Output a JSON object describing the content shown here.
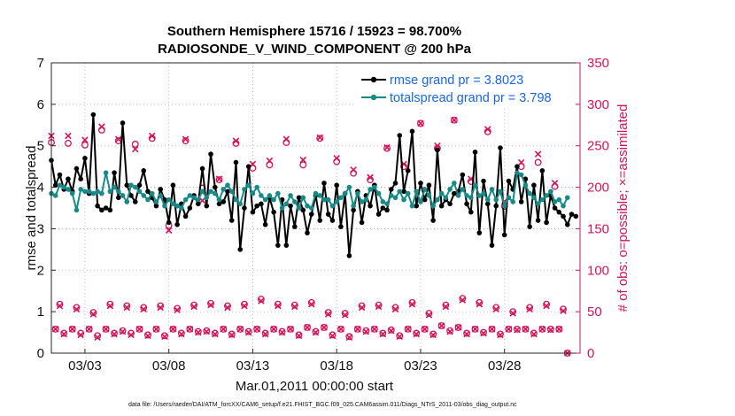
{
  "chart_data": {
    "type": "line",
    "title": "Southern Hemisphere 15716 / 15923 = 98.700%",
    "subtitle": "RADIOSONDE_V_WIND_COMPONENT @ 200 hPa",
    "ylabel": "rmse and totalspread",
    "y2label": "# of obs: o=possible; ×=assimilated",
    "xlabel": "Mar.01,2011 00:00:00 start",
    "footnote": "data file: /Users/raeder/DAI/ATM_forcXX/CAM6_setup/f.e21.FHIST_BGC.f09_025.CAM6assim.011/Diags_NTrS_2011-03/obs_diag_output.nc",
    "ylim": [
      0,
      7
    ],
    "y2lim": [
      0,
      350
    ],
    "xlim": [
      1,
      32.5
    ],
    "yticks": [
      "0",
      "1",
      "2",
      "3",
      "4",
      "5",
      "6",
      "7"
    ],
    "y2ticks": [
      "0",
      "50",
      "100",
      "150",
      "200",
      "250",
      "300",
      "350"
    ],
    "xticks": [
      {
        "pos": 3,
        "label": "03/03"
      },
      {
        "pos": 8,
        "label": "03/08"
      },
      {
        "pos": 13,
        "label": "03/13"
      },
      {
        "pos": 18,
        "label": "03/18"
      },
      {
        "pos": 23,
        "label": "03/23"
      },
      {
        "pos": 28,
        "label": "03/28"
      }
    ],
    "legend_position": "top-right",
    "series": [
      {
        "name": "rmse grand pr = 3.8023",
        "color": "#000000",
        "axis": "left",
        "values": [
          4.65,
          4.05,
          4.3,
          3.95,
          4.2,
          3.9,
          4.45,
          4.2,
          4.7,
          3.85,
          5.75,
          3.55,
          3.45,
          3.5,
          3.45,
          4.35,
          3.75,
          5.55,
          4.05,
          3.8,
          3.65,
          4.05,
          4.4,
          3.9,
          3.75,
          3.55,
          3.95,
          3.7,
          3.15,
          4.05,
          3.1,
          3.6,
          3.3,
          3.5,
          3.8,
          3.6,
          4.45,
          3.55,
          4.8,
          4.0,
          3.6,
          3.65,
          3.9,
          3.2,
          4.6,
          2.5,
          3.5,
          4.5,
          3.4,
          3.55,
          3.6,
          3.1,
          3.75,
          3.4,
          2.6,
          3.7,
          2.6,
          3.55,
          3.05,
          3.75,
          3.45,
          2.9,
          3.35,
          3.8,
          3.2,
          4.1,
          3.35,
          3.2,
          4.05,
          3.05,
          3.85,
          2.35,
          3.45,
          3.9,
          3.15,
          3.8,
          3.55,
          4.05,
          3.35,
          3.5,
          3.45,
          3.95,
          4.1,
          5.25,
          3.9,
          4.4,
          5.35,
          3.55,
          4.1,
          3.7,
          4.05,
          3.2,
          4.9,
          3.55,
          3.7,
          3.6,
          3.85,
          3.9,
          4.3,
          3.6,
          3.4,
          4.85,
          2.9,
          4.15,
          3.6,
          2.6,
          3.55,
          4.95,
          2.85,
          4.15,
          3.95,
          4.5,
          3.65,
          4.2,
          3.05,
          4.05,
          3.2,
          4.4,
          3.15,
          3.8,
          3.5,
          3.4,
          3.3,
          3.1,
          3.35,
          3.3
        ]
      },
      {
        "name": "totalspread grand pr = 3.798",
        "color": "#178a88",
        "axis": "left",
        "values": [
          3.85,
          3.8,
          4.05,
          4.0,
          3.95,
          3.85,
          3.45,
          3.95,
          3.9,
          3.9,
          3.85,
          3.9,
          3.85,
          4.35,
          3.9,
          4.0,
          3.9,
          3.8,
          3.65,
          4.05,
          4.0,
          3.9,
          3.8,
          3.7,
          3.85,
          3.65,
          3.8,
          3.55,
          3.7,
          3.6,
          3.55,
          3.5,
          3.7,
          3.8,
          3.75,
          3.7,
          3.9,
          3.75,
          3.9,
          3.85,
          3.7,
          3.95,
          4.05,
          3.9,
          3.7,
          3.6,
          3.95,
          4.05,
          3.85,
          4.0,
          3.8,
          3.7,
          3.8,
          3.7,
          3.85,
          3.5,
          3.6,
          3.8,
          3.65,
          3.5,
          3.75,
          3.55,
          3.5,
          3.85,
          3.8,
          3.7,
          3.7,
          3.55,
          3.65,
          3.75,
          3.85,
          4.0,
          3.55,
          3.85,
          3.65,
          3.7,
          3.95,
          4.0,
          3.85,
          3.65,
          3.6,
          3.8,
          3.75,
          3.9,
          3.7,
          3.85,
          3.55,
          3.9,
          3.65,
          3.95,
          3.8,
          3.55,
          3.7,
          3.85,
          3.75,
          3.95,
          4.1,
          3.8,
          3.95,
          3.8,
          3.75,
          4.05,
          3.8,
          3.85,
          3.7,
          3.95,
          3.7,
          3.9,
          3.55,
          3.75,
          3.65,
          4.35,
          4.3,
          4.05,
          3.85,
          3.75,
          3.6,
          3.7,
          3.8,
          3.9,
          3.65,
          3.7,
          3.55,
          3.75
        ]
      },
      {
        "name": "possible",
        "color": "#d4145a",
        "axis": "right",
        "marker": "o",
        "values": [
          254,
          29,
          59,
          24,
          253,
          29,
          55,
          24,
          251,
          29,
          49,
          21,
          269,
          29,
          59,
          24,
          256,
          27,
          57,
          24,
          252,
          29,
          55,
          22,
          259,
          29,
          57,
          21,
          154,
          29,
          54,
          24,
          256,
          29,
          58,
          26,
          199,
          27,
          60,
          24,
          209,
          29,
          57,
          23,
          253,
          29,
          59,
          26,
          223,
          29,
          65,
          24,
          227,
          29,
          59,
          26,
          254,
          29,
          58,
          22,
          227,
          31,
          61,
          26,
          259,
          31,
          49,
          22,
          231,
          29,
          48,
          20,
          217,
          29,
          57,
          27,
          209,
          29,
          58,
          24,
          247,
          28,
          55,
          21,
          225,
          29,
          61,
          24,
          277,
          29,
          48,
          23,
          247,
          33,
          58,
          27,
          281,
          31,
          66,
          24,
          207,
          29,
          61,
          25,
          267,
          29,
          55,
          23,
          177,
          29,
          50,
          29,
          225,
          29,
          55,
          24,
          230,
          29,
          59,
          29,
          201,
          29,
          53,
          0
        ]
      },
      {
        "name": "assimilated",
        "color": "#d4145a",
        "axis": "right",
        "marker": "x",
        "values": [
          262,
          29,
          57,
          23,
          262,
          29,
          53,
          22,
          257,
          29,
          47,
          19,
          273,
          29,
          57,
          23,
          258,
          26,
          55,
          22,
          246,
          29,
          53,
          21,
          262,
          29,
          55,
          20,
          148,
          29,
          52,
          23,
          258,
          29,
          56,
          25,
          184,
          26,
          58,
          23,
          210,
          29,
          55,
          22,
          256,
          29,
          57,
          25,
          228,
          29,
          63,
          23,
          232,
          29,
          57,
          25,
          258,
          29,
          56,
          21,
          233,
          31,
          59,
          25,
          260,
          31,
          47,
          21,
          235,
          29,
          46,
          19,
          221,
          29,
          55,
          26,
          212,
          29,
          56,
          23,
          248,
          27,
          53,
          20,
          228,
          29,
          59,
          23,
          277,
          29,
          46,
          22,
          250,
          33,
          56,
          26,
          281,
          31,
          64,
          23,
          210,
          29,
          59,
          24,
          270,
          29,
          53,
          22,
          183,
          29,
          48,
          28,
          230,
          29,
          53,
          23,
          240,
          29,
          57,
          28,
          205,
          29,
          51,
          0
        ]
      }
    ]
  }
}
